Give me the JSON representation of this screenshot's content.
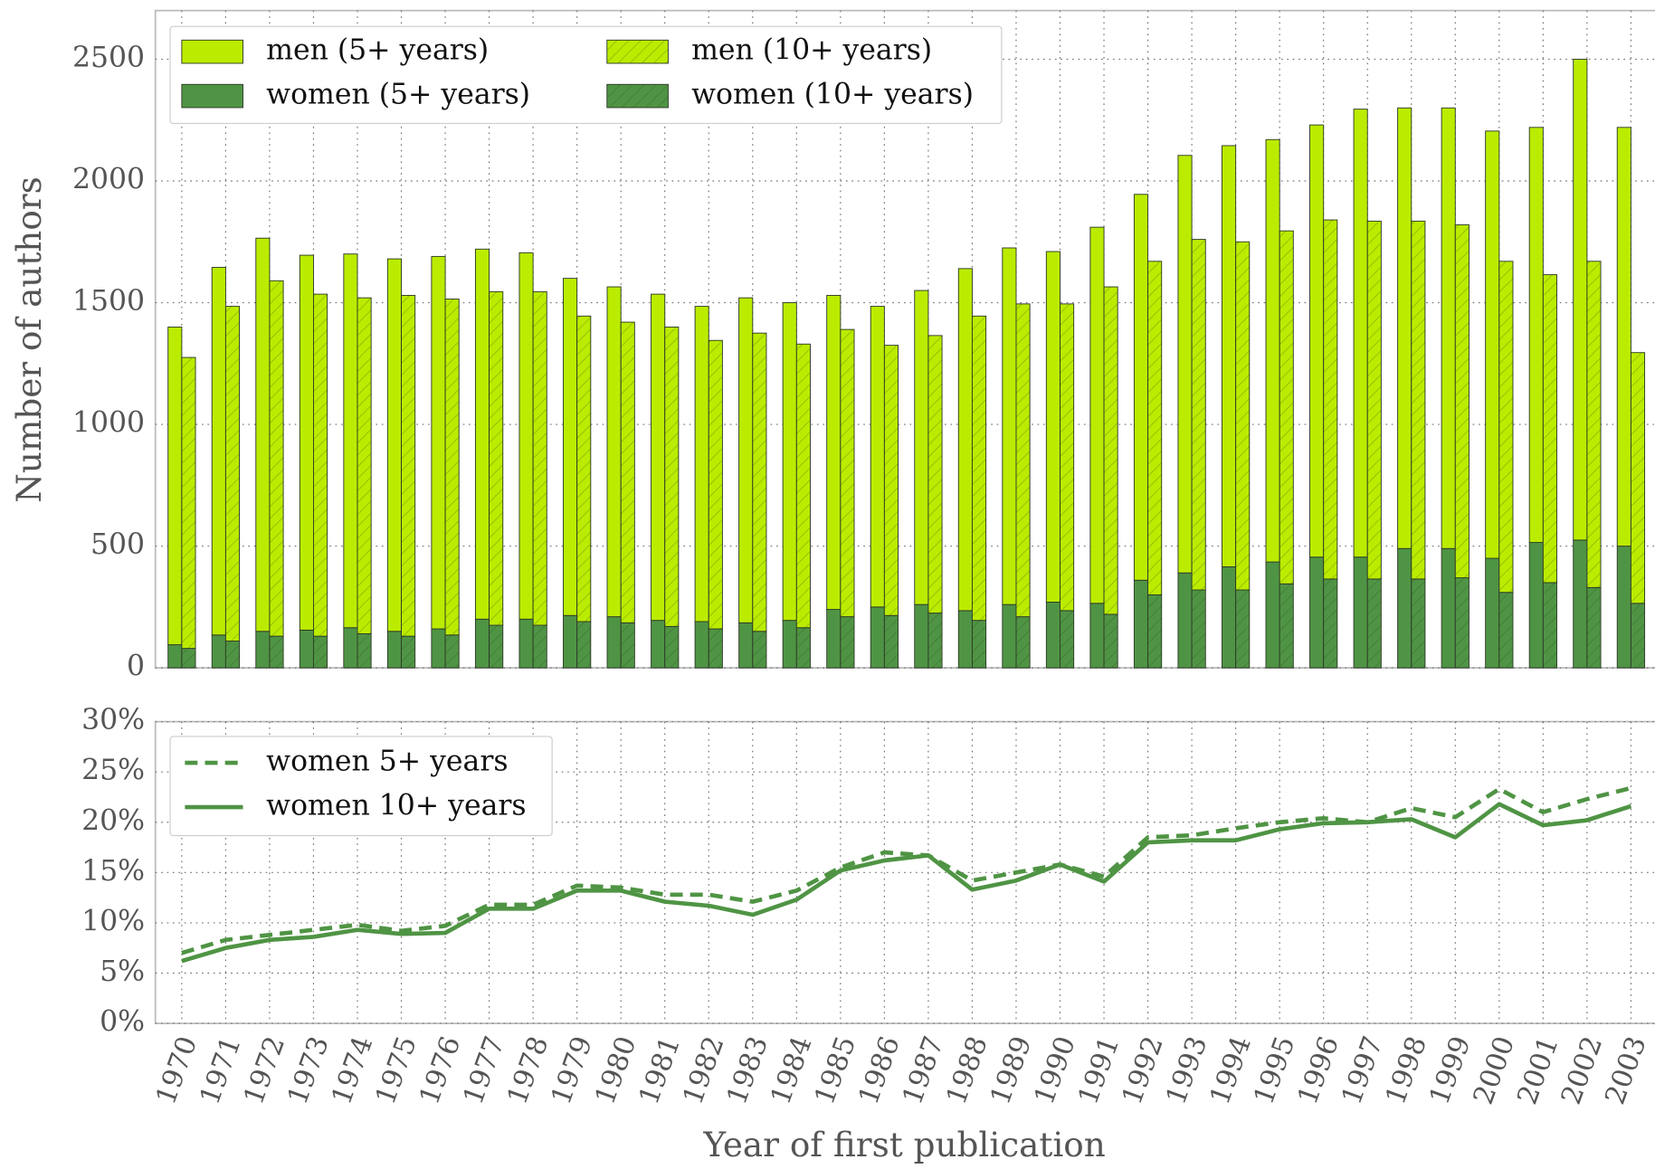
{
  "chart_data": [
    {
      "type": "bar",
      "ylabel": "Number of authors",
      "categories": [
        "1970",
        "1971",
        "1972",
        "1973",
        "1974",
        "1975",
        "1976",
        "1977",
        "1978",
        "1979",
        "1980",
        "1981",
        "1982",
        "1983",
        "1984",
        "1985",
        "1986",
        "1987",
        "1988",
        "1989",
        "1990",
        "1991",
        "1992",
        "1993",
        "1994",
        "1995",
        "1996",
        "1997",
        "1998",
        "1999",
        "2000",
        "2001",
        "2002",
        "2003"
      ],
      "ylim": [
        0,
        2700
      ],
      "yticks": [
        0,
        500,
        1000,
        1500,
        2000,
        2500
      ],
      "grid": true,
      "legend": "upper left",
      "series": [
        {
          "name": "women (5+ years)",
          "color": "#4f9444",
          "hatch": false,
          "values": [
            95,
            135,
            150,
            155,
            165,
            150,
            160,
            200,
            200,
            215,
            210,
            195,
            190,
            185,
            195,
            240,
            250,
            260,
            235,
            260,
            270,
            265,
            360,
            390,
            415,
            435,
            455,
            455,
            490,
            490,
            450,
            515,
            525,
            500
          ]
        },
        {
          "name": "men (5+ years)",
          "color": "#bbec00",
          "hatch": false,
          "values": [
            1305,
            1510,
            1615,
            1540,
            1535,
            1530,
            1530,
            1520,
            1505,
            1385,
            1355,
            1340,
            1295,
            1335,
            1305,
            1290,
            1235,
            1290,
            1405,
            1465,
            1440,
            1545,
            1585,
            1715,
            1730,
            1735,
            1775,
            1840,
            1810,
            1810,
            1755,
            1705,
            1975,
            1720
          ]
        },
        {
          "name": "women (10+ years)",
          "color": "#4f9444",
          "hatch": true,
          "values": [
            80,
            110,
            130,
            130,
            140,
            130,
            135,
            175,
            175,
            190,
            185,
            170,
            160,
            150,
            165,
            210,
            215,
            225,
            195,
            210,
            235,
            220,
            300,
            320,
            320,
            345,
            365,
            365,
            365,
            370,
            310,
            350,
            330,
            265
          ]
        },
        {
          "name": "men (10+ years)",
          "color": "#bbec00",
          "hatch": true,
          "values": [
            1195,
            1375,
            1460,
            1405,
            1380,
            1400,
            1380,
            1370,
            1370,
            1255,
            1235,
            1230,
            1185,
            1225,
            1165,
            1180,
            1110,
            1140,
            1250,
            1285,
            1260,
            1345,
            1370,
            1440,
            1430,
            1450,
            1475,
            1470,
            1470,
            1450,
            1360,
            1265,
            1340,
            1030
          ]
        }
      ]
    },
    {
      "type": "line",
      "xlabel": "Year of first publication",
      "categories": [
        "1970",
        "1971",
        "1972",
        "1973",
        "1974",
        "1975",
        "1976",
        "1977",
        "1978",
        "1979",
        "1980",
        "1981",
        "1982",
        "1983",
        "1984",
        "1985",
        "1986",
        "1987",
        "1988",
        "1989",
        "1990",
        "1991",
        "1992",
        "1993",
        "1994",
        "1995",
        "1996",
        "1997",
        "1998",
        "1999",
        "2000",
        "2001",
        "2002",
        "2003"
      ],
      "ylim": [
        0,
        30
      ],
      "yticks": [
        {
          "value": 0,
          "label": "0%"
        },
        {
          "value": 5,
          "label": "5%"
        },
        {
          "value": 10,
          "label": "10%"
        },
        {
          "value": 15,
          "label": "15%"
        },
        {
          "value": 20,
          "label": "20%"
        },
        {
          "value": 25,
          "label": "25%"
        },
        {
          "value": 30,
          "label": "30%"
        }
      ],
      "grid": true,
      "legend": "upper left",
      "series": [
        {
          "name": "women 5+ years",
          "color": "#4f9444",
          "dash": true,
          "values": [
            7,
            8.3,
            8.8,
            9.3,
            9.8,
            9.2,
            9.7,
            11.8,
            11.8,
            13.7,
            13.5,
            12.8,
            12.8,
            12.1,
            13.2,
            15.5,
            17,
            16.7,
            14.2,
            15,
            15.8,
            14.6,
            18.5,
            18.7,
            19.4,
            20,
            20.4,
            20,
            21.4,
            20.5,
            23.3,
            21,
            22.3,
            23.4
          ]
        },
        {
          "name": "women 10+ years",
          "color": "#4f9444",
          "dash": false,
          "values": [
            6.2,
            7.5,
            8.3,
            8.6,
            9.3,
            8.9,
            9,
            11.4,
            11.4,
            13.2,
            13.2,
            12.1,
            11.7,
            10.8,
            12.3,
            15.2,
            16.2,
            16.7,
            13.3,
            14.2,
            15.8,
            14.1,
            18,
            18.2,
            18.2,
            19.3,
            19.9,
            20,
            20.3,
            18.5,
            21.8,
            19.7,
            20.2,
            21.6
          ]
        }
      ]
    }
  ]
}
